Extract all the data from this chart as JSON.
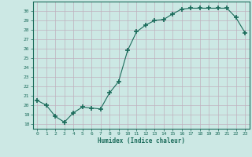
{
  "x": [
    0,
    1,
    2,
    3,
    4,
    5,
    6,
    7,
    8,
    9,
    10,
    11,
    12,
    13,
    14,
    15,
    16,
    17,
    18,
    19,
    20,
    21,
    22,
    23
  ],
  "y": [
    20.5,
    20.0,
    18.8,
    18.2,
    19.2,
    19.8,
    19.7,
    19.6,
    21.3,
    22.5,
    25.8,
    27.8,
    28.5,
    29.0,
    29.1,
    29.7,
    30.2,
    30.3,
    30.3,
    30.3,
    30.3,
    30.3,
    29.3,
    27.7
  ],
  "line_color": "#1a6b5a",
  "marker_color": "#1a6b5a",
  "bg_color": "#cce8e4",
  "grid_color": "#c0b0be",
  "xlabel": "Humidex (Indice chaleur)",
  "xlim": [
    -0.5,
    23.5
  ],
  "ylim": [
    17.5,
    31.0
  ],
  "yticks": [
    18,
    19,
    20,
    21,
    22,
    23,
    24,
    25,
    26,
    27,
    28,
    29,
    30
  ],
  "xticks": [
    0,
    1,
    2,
    3,
    4,
    5,
    6,
    7,
    8,
    9,
    10,
    11,
    12,
    13,
    14,
    15,
    16,
    17,
    18,
    19,
    20,
    21,
    22,
    23
  ]
}
